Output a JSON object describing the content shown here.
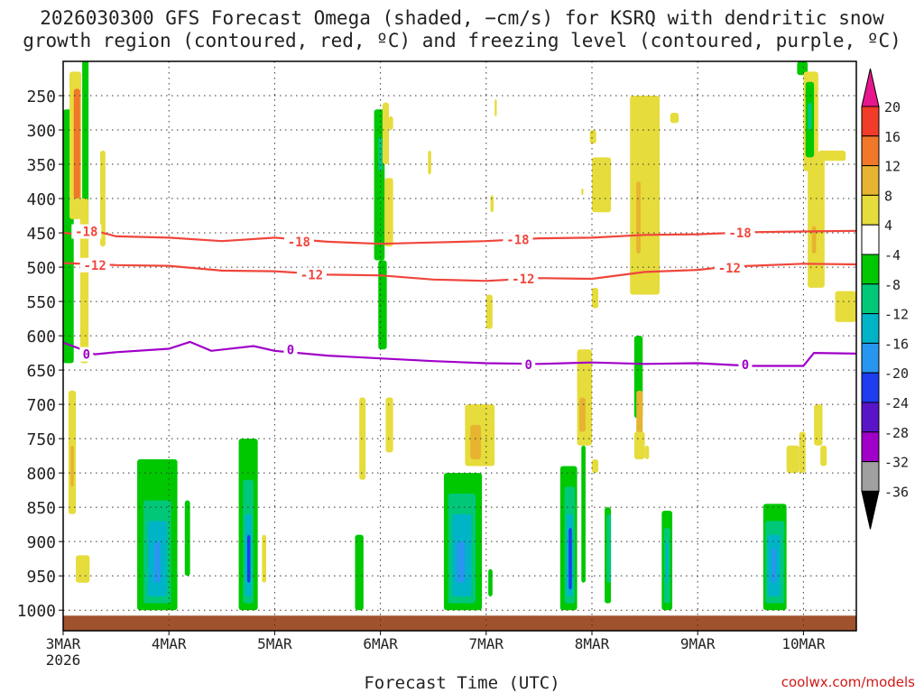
{
  "chart_data": {
    "type": "heatmap",
    "title_line1": "2026030300 GFS Forecast Omega (shaded, −cm/s) for KSRQ with dendritic snow",
    "title_line2": "growth region (contoured, red, ºC) and freezing level (contoured, purple, ºC)",
    "xlabel": "Forecast Time (UTC)",
    "credit": "coolwx.com/models",
    "x_ticks": [
      "3MAR",
      "4MAR",
      "5MAR",
      "6MAR",
      "7MAR",
      "8MAR",
      "9MAR",
      "10MAR"
    ],
    "x_year": "2026",
    "x_range_days": [
      0,
      7.5
    ],
    "y_ticks": [
      250,
      300,
      350,
      400,
      450,
      500,
      550,
      600,
      650,
      700,
      750,
      800,
      850,
      900,
      950,
      1000
    ],
    "y_range_hpa": [
      200,
      1030
    ],
    "colorbar": {
      "levels": [
        "20",
        "16",
        "12",
        "8",
        "4",
        "-4",
        "-8",
        "-12",
        "-16",
        "-20",
        "-24",
        "-28",
        "-32",
        "-36"
      ],
      "colors": [
        "#e8168c",
        "#f03c28",
        "#f07828",
        "#e6b430",
        "#e6dc3c",
        "#ffffff",
        "#00c800",
        "#00c878",
        "#00b4c8",
        "#2896f0",
        "#1e3cf0",
        "#5a14c8",
        "#a000c8",
        "#a0a0a0",
        "#000000"
      ]
    },
    "contours": [
      {
        "name": "-18",
        "color": "#f0463c",
        "points": [
          [
            0,
            450
          ],
          [
            0.15,
            452
          ],
          [
            0.3,
            447
          ],
          [
            0.5,
            455
          ],
          [
            1,
            457
          ],
          [
            1.5,
            462
          ],
          [
            2,
            457
          ],
          [
            2.5,
            463
          ],
          [
            3,
            466
          ],
          [
            3.5,
            464
          ],
          [
            4,
            462
          ],
          [
            4.5,
            458
          ],
          [
            5,
            457
          ],
          [
            5.5,
            453
          ],
          [
            6,
            452
          ],
          [
            6.5,
            449
          ],
          [
            7,
            448
          ],
          [
            7.5,
            447
          ]
        ]
      },
      {
        "name": "-12",
        "color": "#f0463c",
        "points": [
          [
            0,
            494
          ],
          [
            0.5,
            497
          ],
          [
            1,
            498
          ],
          [
            1.5,
            505
          ],
          [
            2,
            506
          ],
          [
            2.5,
            511
          ],
          [
            3,
            512
          ],
          [
            3.5,
            518
          ],
          [
            4,
            520
          ],
          [
            4.5,
            516
          ],
          [
            5,
            517
          ],
          [
            5.5,
            507
          ],
          [
            6,
            504
          ],
          [
            6.3,
            499
          ],
          [
            6.5,
            498
          ],
          [
            7,
            495
          ],
          [
            7.5,
            496
          ]
        ]
      },
      {
        "name": "0",
        "color": "#a000c8",
        "points": [
          [
            0,
            610
          ],
          [
            0.3,
            627
          ],
          [
            0.5,
            624
          ],
          [
            1,
            619
          ],
          [
            1.2,
            609
          ],
          [
            1.4,
            622
          ],
          [
            1.8,
            615
          ],
          [
            2,
            622
          ],
          [
            2.5,
            629
          ],
          [
            3,
            633
          ],
          [
            3.5,
            637
          ],
          [
            4,
            640
          ],
          [
            4.5,
            641
          ],
          [
            5,
            639
          ],
          [
            5.5,
            641
          ],
          [
            6,
            640
          ],
          [
            6.5,
            644
          ],
          [
            7,
            644
          ],
          [
            7.1,
            625
          ],
          [
            7.5,
            626
          ]
        ]
      }
    ],
    "contour_labels": [
      {
        "text": "-18",
        "x": 0.22,
        "y": 448,
        "color": "#f0463c"
      },
      {
        "text": "-18",
        "x": 2.23,
        "y": 463,
        "color": "#f0463c"
      },
      {
        "text": "-18",
        "x": 4.3,
        "y": 460,
        "color": "#f0463c"
      },
      {
        "text": "-18",
        "x": 6.4,
        "y": 450,
        "color": "#f0463c"
      },
      {
        "text": "-12",
        "x": 0.3,
        "y": 497,
        "color": "#f0463c"
      },
      {
        "text": "-12",
        "x": 2.35,
        "y": 511,
        "color": "#f0463c"
      },
      {
        "text": "-12",
        "x": 4.35,
        "y": 517,
        "color": "#f0463c"
      },
      {
        "text": "-12",
        "x": 6.3,
        "y": 501,
        "color": "#f0463c"
      },
      {
        "text": "0",
        "x": 0.22,
        "y": 627,
        "color": "#a000c8"
      },
      {
        "text": "0",
        "x": 2.15,
        "y": 620,
        "color": "#a000c8"
      },
      {
        "text": "0",
        "x": 4.4,
        "y": 642,
        "color": "#a000c8"
      },
      {
        "text": "0",
        "x": 6.45,
        "y": 642,
        "color": "#a000c8"
      }
    ],
    "omega_cells": [
      {
        "x0": 0.0,
        "x1": 0.1,
        "p0": 270,
        "p1": 640,
        "c": "#00c800"
      },
      {
        "x0": 0.06,
        "x1": 0.17,
        "p0": 215,
        "p1": 430,
        "c": "#e6dc3c"
      },
      {
        "x0": 0.1,
        "x1": 0.16,
        "p0": 240,
        "p1": 400,
        "c": "#f07828"
      },
      {
        "x0": 0.18,
        "x1": 0.24,
        "p0": 195,
        "p1": 440,
        "c": "#00c800"
      },
      {
        "x0": 0.16,
        "x1": 0.24,
        "p0": 400,
        "p1": 640,
        "c": "#e6dc3c"
      },
      {
        "x0": 0.05,
        "x1": 0.12,
        "p0": 680,
        "p1": 860,
        "c": "#e6dc3c"
      },
      {
        "x0": 0.07,
        "x1": 0.1,
        "p0": 760,
        "p1": 820,
        "c": "#e6b430"
      },
      {
        "x0": 0.12,
        "x1": 0.25,
        "p0": 920,
        "p1": 960,
        "c": "#e6dc3c"
      },
      {
        "x0": 0.35,
        "x1": 0.4,
        "p0": 330,
        "p1": 470,
        "c": "#e6dc3c"
      },
      {
        "x0": 0.7,
        "x1": 1.08,
        "p0": 780,
        "p1": 1000,
        "c": "#00c800"
      },
      {
        "x0": 0.76,
        "x1": 1.02,
        "p0": 840,
        "p1": 990,
        "c": "#00c878"
      },
      {
        "x0": 0.8,
        "x1": 0.98,
        "p0": 870,
        "p1": 980,
        "c": "#00b4c8"
      },
      {
        "x0": 0.86,
        "x1": 0.92,
        "p0": 900,
        "p1": 960,
        "c": "#2896f0"
      },
      {
        "x0": 1.15,
        "x1": 1.2,
        "p0": 840,
        "p1": 950,
        "c": "#00c800"
      },
      {
        "x0": 1.66,
        "x1": 1.84,
        "p0": 750,
        "p1": 1000,
        "c": "#00c800"
      },
      {
        "x0": 1.7,
        "x1": 1.8,
        "p0": 810,
        "p1": 990,
        "c": "#00c878"
      },
      {
        "x0": 1.72,
        "x1": 1.78,
        "p0": 860,
        "p1": 980,
        "c": "#00b4c8"
      },
      {
        "x0": 1.74,
        "x1": 1.77,
        "p0": 890,
        "p1": 960,
        "c": "#1e3cf0"
      },
      {
        "x0": 1.88,
        "x1": 1.92,
        "p0": 890,
        "p1": 960,
        "c": "#e6dc3c"
      },
      {
        "x0": 2.76,
        "x1": 2.84,
        "p0": 890,
        "p1": 1000,
        "c": "#00c800"
      },
      {
        "x0": 2.8,
        "x1": 2.86,
        "p0": 690,
        "p1": 810,
        "c": "#e6dc3c"
      },
      {
        "x0": 2.94,
        "x1": 3.04,
        "p0": 270,
        "p1": 490,
        "c": "#00c800"
      },
      {
        "x0": 2.98,
        "x1": 3.06,
        "p0": 490,
        "p1": 620,
        "c": "#00c800"
      },
      {
        "x0": 2.98,
        "x1": 3.02,
        "p0": 310,
        "p1": 360,
        "c": "#00c878"
      },
      {
        "x0": 3.02,
        "x1": 3.08,
        "p0": 260,
        "p1": 350,
        "c": "#e6dc3c"
      },
      {
        "x0": 3.04,
        "x1": 3.12,
        "p0": 370,
        "p1": 470,
        "c": "#e6dc3c"
      },
      {
        "x0": 3.05,
        "x1": 3.12,
        "p0": 690,
        "p1": 770,
        "c": "#e6dc3c"
      },
      {
        "x0": 3.08,
        "x1": 3.12,
        "p0": 280,
        "p1": 300,
        "c": "#e6dc3c"
      },
      {
        "x0": 3.45,
        "x1": 3.48,
        "p0": 330,
        "p1": 365,
        "c": "#e6dc3c"
      },
      {
        "x0": 3.6,
        "x1": 3.96,
        "p0": 800,
        "p1": 1000,
        "c": "#00c800"
      },
      {
        "x0": 3.64,
        "x1": 3.9,
        "p0": 830,
        "p1": 990,
        "c": "#00c878"
      },
      {
        "x0": 3.68,
        "x1": 3.86,
        "p0": 860,
        "p1": 980,
        "c": "#00b4c8"
      },
      {
        "x0": 3.72,
        "x1": 3.8,
        "p0": 900,
        "p1": 960,
        "c": "#2896f0"
      },
      {
        "x0": 3.8,
        "x1": 4.08,
        "p0": 700,
        "p1": 790,
        "c": "#e6dc3c"
      },
      {
        "x0": 3.85,
        "x1": 3.95,
        "p0": 730,
        "p1": 780,
        "c": "#e6b430"
      },
      {
        "x0": 4.0,
        "x1": 4.06,
        "p0": 540,
        "p1": 590,
        "c": "#e6dc3c"
      },
      {
        "x0": 4.02,
        "x1": 4.06,
        "p0": 940,
        "p1": 980,
        "c": "#00c800"
      },
      {
        "x0": 4.04,
        "x1": 4.07,
        "p0": 395,
        "p1": 420,
        "c": "#e6dc3c"
      },
      {
        "x0": 4.08,
        "x1": 4.1,
        "p0": 255,
        "p1": 280,
        "c": "#e6dc3c"
      },
      {
        "x0": 4.7,
        "x1": 4.86,
        "p0": 790,
        "p1": 1000,
        "c": "#00c800"
      },
      {
        "x0": 4.74,
        "x1": 4.84,
        "p0": 820,
        "p1": 990,
        "c": "#00c878"
      },
      {
        "x0": 4.76,
        "x1": 4.82,
        "p0": 860,
        "p1": 980,
        "c": "#00b4c8"
      },
      {
        "x0": 4.78,
        "x1": 4.81,
        "p0": 880,
        "p1": 970,
        "c": "#1e3cf0"
      },
      {
        "x0": 4.86,
        "x1": 5.0,
        "p0": 620,
        "p1": 760,
        "c": "#e6dc3c"
      },
      {
        "x0": 4.88,
        "x1": 4.94,
        "p0": 690,
        "p1": 740,
        "c": "#e6b430"
      },
      {
        "x0": 4.9,
        "x1": 4.94,
        "p0": 760,
        "p1": 960,
        "c": "#00c800"
      },
      {
        "x0": 4.94,
        "x1": 5.0,
        "p0": 660,
        "p1": 720,
        "c": "#e6dc3c"
      },
      {
        "x0": 5.0,
        "x1": 5.18,
        "p0": 340,
        "p1": 420,
        "c": "#e6dc3c"
      },
      {
        "x0": 4.98,
        "x1": 5.04,
        "p0": 300,
        "p1": 320,
        "c": "#e6dc3c"
      },
      {
        "x0": 4.9,
        "x1": 4.92,
        "p0": 385,
        "p1": 395,
        "c": "#e6dc3c"
      },
      {
        "x0": 5.0,
        "x1": 5.06,
        "p0": 530,
        "p1": 560,
        "c": "#e6dc3c"
      },
      {
        "x0": 5.0,
        "x1": 5.04,
        "p0": 380,
        "p1": 400,
        "c": "#e6dc3c"
      },
      {
        "x0": 5.0,
        "x1": 5.06,
        "p0": 780,
        "p1": 800,
        "c": "#e6dc3c"
      },
      {
        "x0": 5.12,
        "x1": 5.18,
        "p0": 850,
        "p1": 990,
        "c": "#00c800"
      },
      {
        "x0": 5.14,
        "x1": 5.18,
        "p0": 860,
        "p1": 960,
        "c": "#00c878"
      },
      {
        "x0": 5.36,
        "x1": 5.64,
        "p0": 250,
        "p1": 540,
        "c": "#e6dc3c"
      },
      {
        "x0": 5.4,
        "x1": 5.6,
        "p0": 300,
        "p1": 310,
        "c": "#e6dc3c"
      },
      {
        "x0": 5.42,
        "x1": 5.46,
        "p0": 375,
        "p1": 480,
        "c": "#e6b430"
      },
      {
        "x0": 5.4,
        "x1": 5.48,
        "p0": 600,
        "p1": 720,
        "c": "#00c800"
      },
      {
        "x0": 5.42,
        "x1": 5.48,
        "p0": 680,
        "p1": 760,
        "c": "#e6b430"
      },
      {
        "x0": 5.4,
        "x1": 5.5,
        "p0": 740,
        "p1": 780,
        "c": "#e6dc3c"
      },
      {
        "x0": 5.5,
        "x1": 5.54,
        "p0": 760,
        "p1": 780,
        "c": "#e6dc3c"
      },
      {
        "x0": 5.66,
        "x1": 5.76,
        "p0": 855,
        "p1": 1000,
        "c": "#00c800"
      },
      {
        "x0": 5.68,
        "x1": 5.74,
        "p0": 880,
        "p1": 990,
        "c": "#00c878"
      },
      {
        "x0": 5.7,
        "x1": 5.72,
        "p0": 900,
        "p1": 960,
        "c": "#00b4c8"
      },
      {
        "x0": 5.74,
        "x1": 5.82,
        "p0": 275,
        "p1": 290,
        "c": "#e6dc3c"
      },
      {
        "x0": 6.62,
        "x1": 6.84,
        "p0": 845,
        "p1": 1000,
        "c": "#00c800"
      },
      {
        "x0": 6.64,
        "x1": 6.82,
        "p0": 870,
        "p1": 990,
        "c": "#00c878"
      },
      {
        "x0": 6.66,
        "x1": 6.78,
        "p0": 890,
        "p1": 980,
        "c": "#00b4c8"
      },
      {
        "x0": 6.7,
        "x1": 6.74,
        "p0": 910,
        "p1": 960,
        "c": "#2896f0"
      },
      {
        "x0": 6.84,
        "x1": 6.96,
        "p0": 760,
        "p1": 800,
        "c": "#e6dc3c"
      },
      {
        "x0": 6.94,
        "x1": 7.04,
        "p0": 200,
        "p1": 220,
        "c": "#00c800"
      },
      {
        "x0": 7.0,
        "x1": 7.14,
        "p0": 215,
        "p1": 360,
        "c": "#e6dc3c"
      },
      {
        "x0": 7.04,
        "x1": 7.2,
        "p0": 340,
        "p1": 530,
        "c": "#e6dc3c"
      },
      {
        "x0": 7.08,
        "x1": 7.12,
        "p0": 440,
        "p1": 480,
        "c": "#e6b430"
      },
      {
        "x0": 7.02,
        "x1": 7.1,
        "p0": 230,
        "p1": 340,
        "c": "#00c800"
      },
      {
        "x0": 7.04,
        "x1": 7.08,
        "p0": 260,
        "p1": 300,
        "c": "#00c878"
      },
      {
        "x0": 7.14,
        "x1": 7.4,
        "p0": 330,
        "p1": 345,
        "c": "#e6dc3c"
      },
      {
        "x0": 7.3,
        "x1": 7.5,
        "p0": 535,
        "p1": 580,
        "c": "#e6dc3c"
      },
      {
        "x0": 7.1,
        "x1": 7.18,
        "p0": 700,
        "p1": 760,
        "c": "#e6dc3c"
      },
      {
        "x0": 7.16,
        "x1": 7.22,
        "p0": 760,
        "p1": 790,
        "c": "#e6dc3c"
      },
      {
        "x0": 6.96,
        "x1": 7.02,
        "p0": 740,
        "p1": 800,
        "c": "#e6dc3c"
      }
    ],
    "surface_band": {
      "p0": 1008,
      "p1": 1030,
      "c": "#a0522d"
    }
  }
}
